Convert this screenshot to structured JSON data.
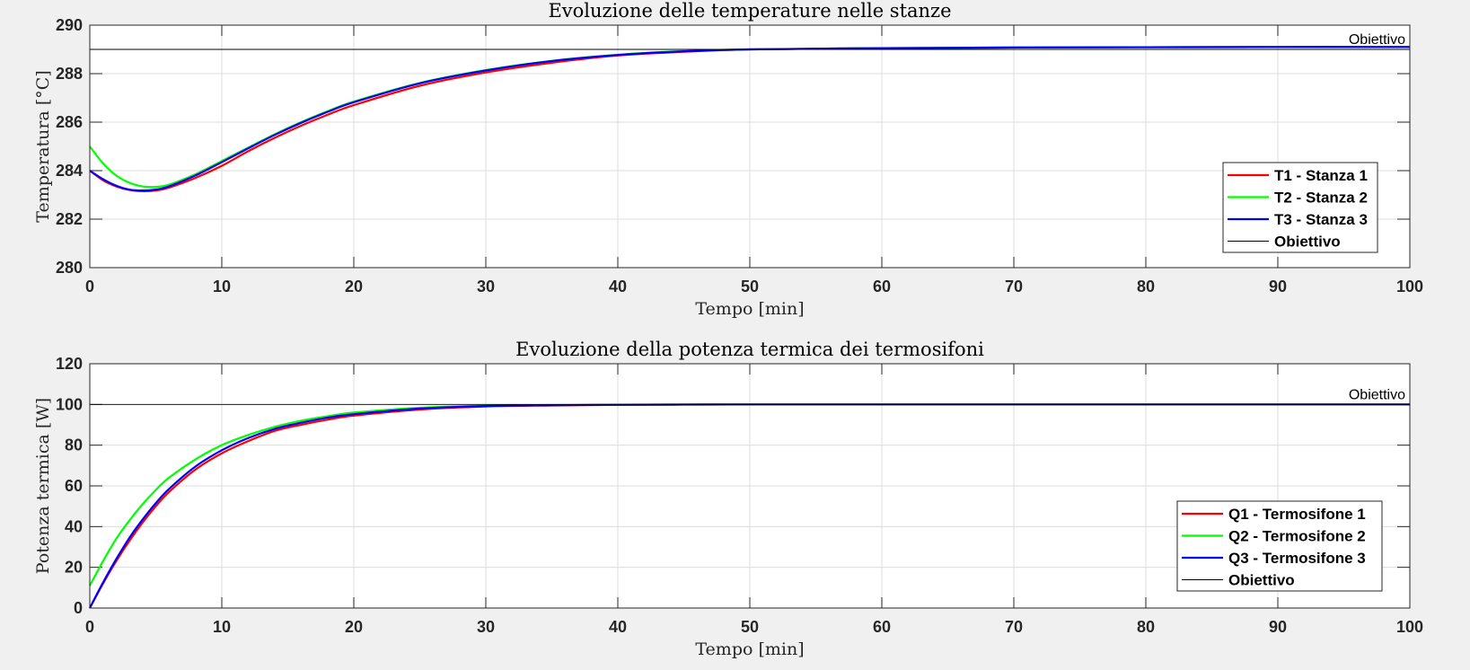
{
  "chart_data": [
    {
      "type": "line",
      "title": "Evoluzione delle temperature nelle stanze",
      "xlabel": "Tempo [min]",
      "ylabel": "Temperatura [°C]",
      "xlim": [
        0,
        100
      ],
      "ylim": [
        280,
        290
      ],
      "xticks": [
        0,
        10,
        20,
        30,
        40,
        50,
        60,
        70,
        80,
        90,
        100
      ],
      "yticks": [
        280,
        282,
        284,
        286,
        288,
        290
      ],
      "grid": true,
      "legend_position": "right",
      "annotation": "Obiettivo",
      "x": [
        0,
        1,
        2,
        3,
        4,
        5,
        6,
        8,
        10,
        12,
        14,
        16,
        18,
        20,
        25,
        30,
        35,
        40,
        45,
        50,
        60,
        70,
        80,
        90,
        100
      ],
      "series": [
        {
          "name": "T1 - Stanza 1",
          "color": "#ff0000",
          "values": [
            284.0,
            283.6,
            283.35,
            283.2,
            283.15,
            283.18,
            283.3,
            283.7,
            284.2,
            284.8,
            285.35,
            285.85,
            286.3,
            286.7,
            287.5,
            288.05,
            288.45,
            288.75,
            288.9,
            289.0,
            289.05,
            289.08,
            289.09,
            289.1,
            289.1
          ]
        },
        {
          "name": "T2 - Stanza 2",
          "color": "#00ff00",
          "values": [
            285.0,
            284.3,
            283.8,
            283.5,
            283.35,
            283.33,
            283.42,
            283.85,
            284.4,
            284.95,
            285.5,
            286.0,
            286.45,
            286.85,
            287.62,
            288.15,
            288.53,
            288.78,
            288.93,
            289.0,
            289.05,
            289.08,
            289.09,
            289.1,
            289.1
          ]
        },
        {
          "name": "T3 - Stanza 3",
          "color": "#0000ff",
          "values": [
            284.0,
            283.65,
            283.38,
            283.22,
            283.18,
            283.22,
            283.35,
            283.8,
            284.35,
            284.92,
            285.47,
            285.97,
            286.42,
            286.82,
            287.6,
            288.13,
            288.52,
            288.77,
            288.92,
            289.0,
            289.05,
            289.08,
            289.09,
            289.1,
            289.1
          ]
        },
        {
          "name": "Obiettivo",
          "color": "#000000",
          "constant": 289
        }
      ]
    },
    {
      "type": "line",
      "title": "Evoluzione della potenza termica dei termosifoni",
      "xlabel": "Tempo [min]",
      "ylabel": "Potenza termica [W]",
      "xlim": [
        0,
        100
      ],
      "ylim": [
        0,
        120
      ],
      "xticks": [
        0,
        10,
        20,
        30,
        40,
        50,
        60,
        70,
        80,
        90,
        100
      ],
      "yticks": [
        0,
        20,
        40,
        60,
        80,
        100,
        120
      ],
      "grid": true,
      "legend_position": "right",
      "annotation": "Obiettivo",
      "x": [
        0,
        1,
        2,
        3,
        4,
        5,
        6,
        8,
        10,
        12,
        14,
        16,
        18,
        20,
        25,
        30,
        35,
        40,
        45,
        50,
        60,
        70,
        80,
        90,
        100
      ],
      "series": [
        {
          "name": "Q1 - Termosifone 1",
          "color": "#ff0000",
          "values": [
            0,
            12,
            23,
            33,
            42,
            50,
            57,
            68,
            76,
            82,
            87,
            90,
            92.5,
            94.5,
            97.5,
            99,
            99.5,
            99.8,
            99.9,
            100,
            100,
            100,
            100,
            100,
            100
          ]
        },
        {
          "name": "Q2 - Termosifone 2",
          "color": "#00ff00",
          "values": [
            11,
            23,
            34,
            43,
            51,
            58,
            64,
            73,
            80,
            85,
            89,
            92,
            94.2,
            96,
            98.4,
            99.4,
            99.7,
            99.9,
            100,
            100,
            100,
            100,
            100,
            100,
            100
          ]
        },
        {
          "name": "Q3 - Termosifone 3",
          "color": "#0000ff",
          "values": [
            0,
            12.5,
            24,
            34.5,
            43.5,
            51.5,
            58.5,
            69.5,
            77.5,
            83.5,
            88,
            91,
            93.5,
            95.2,
            98,
            99.2,
            99.6,
            99.85,
            99.95,
            100,
            100,
            100,
            100,
            100,
            100
          ]
        },
        {
          "name": "Obiettivo",
          "color": "#000000",
          "constant": 100
        }
      ]
    }
  ]
}
